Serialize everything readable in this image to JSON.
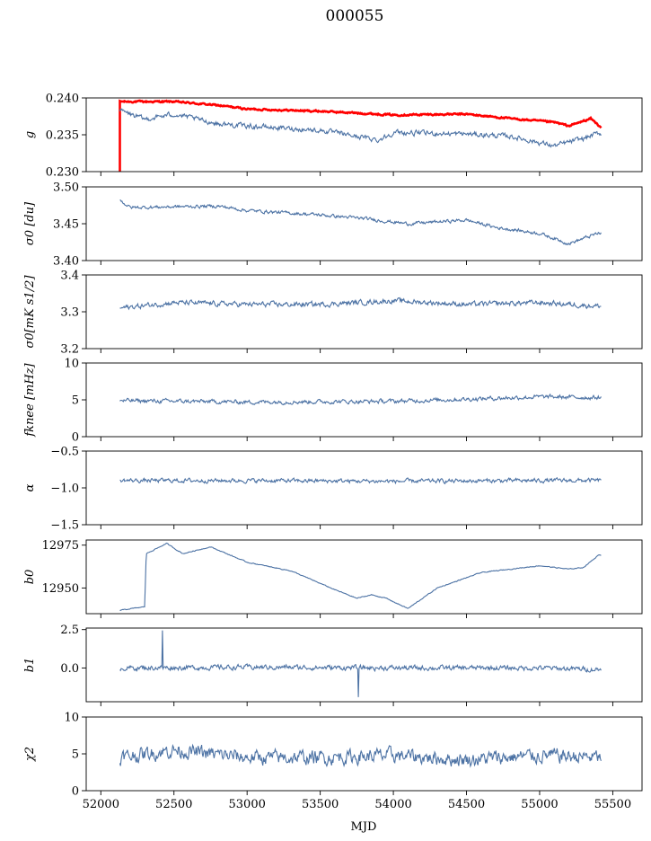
{
  "chart_data": {
    "type": "line",
    "title": "000055",
    "xlabel": "MJD",
    "x_range": [
      52130,
      55420
    ],
    "xlim": [
      51900,
      55700
    ],
    "xticks": [
      52000,
      52500,
      53000,
      53500,
      54000,
      54500,
      55000,
      55500
    ],
    "xtick_labels": [
      "52000",
      "52500",
      "53000",
      "53500",
      "54000",
      "54500",
      "55000",
      "55500"
    ],
    "series_color": "#4c72a4",
    "panels": [
      {
        "ylabel": "g",
        "ylim": [
          0.23,
          0.24
        ],
        "yticks": [
          0.23,
          0.235,
          0.24
        ],
        "ytick_labels": [
          "0.230",
          "0.235",
          "0.240"
        ],
        "series": [
          {
            "color": "#ff0000",
            "anchors": [
              [
                52130,
                0.2395
              ],
              [
                52500,
                0.2395
              ],
              [
                52800,
                0.239
              ],
              [
                53000,
                0.2385
              ],
              [
                53500,
                0.2382
              ],
              [
                54000,
                0.2377
              ],
              [
                54500,
                0.2378
              ],
              [
                54800,
                0.2372
              ],
              [
                55100,
                0.2367
              ],
              [
                55200,
                0.2362
              ],
              [
                55350,
                0.2372
              ],
              [
                55420,
                0.236
              ]
            ]
          },
          {
            "color": "#4c72a4",
            "anchors": [
              [
                52130,
                0.2383
              ],
              [
                52300,
                0.2371
              ],
              [
                52500,
                0.2378
              ],
              [
                52800,
                0.2365
              ],
              [
                53000,
                0.2362
              ],
              [
                53500,
                0.2356
              ],
              [
                53900,
                0.2343
              ],
              [
                54000,
                0.2353
              ],
              [
                54500,
                0.2351
              ],
              [
                54800,
                0.2348
              ],
              [
                55100,
                0.2335
              ],
              [
                55300,
                0.2345
              ],
              [
                55400,
                0.2352
              ]
            ]
          }
        ]
      },
      {
        "ylabel": "σ0 [du]",
        "ylim": [
          3.4,
          3.5
        ],
        "yticks": [
          3.4,
          3.45,
          3.5
        ],
        "ytick_labels": [
          "3.40",
          "3.45",
          "3.50"
        ],
        "series": [
          {
            "color": "#4c72a4",
            "anchors": [
              [
                52130,
                3.482
              ],
              [
                52200,
                3.472
              ],
              [
                52800,
                3.474
              ],
              [
                53000,
                3.468
              ],
              [
                53500,
                3.462
              ],
              [
                53800,
                3.457
              ],
              [
                54100,
                3.45
              ],
              [
                54500,
                3.455
              ],
              [
                54700,
                3.445
              ],
              [
                55000,
                3.437
              ],
              [
                55200,
                3.423
              ],
              [
                55300,
                3.43
              ],
              [
                55400,
                3.437
              ]
            ]
          }
        ]
      },
      {
        "ylabel": "σ0[mK s1/2]",
        "ylim": [
          3.2,
          3.4
        ],
        "yticks": [
          3.2,
          3.3,
          3.4
        ],
        "ytick_labels": [
          "3.2",
          "3.3",
          "3.4"
        ],
        "series": [
          {
            "color": "#4c72a4",
            "anchors": [
              [
                52130,
                3.31
              ],
              [
                52500,
                3.325
              ],
              [
                53000,
                3.32
              ],
              [
                53500,
                3.32
              ],
              [
                54000,
                3.33
              ],
              [
                54500,
                3.32
              ],
              [
                55000,
                3.325
              ],
              [
                55420,
                3.315
              ]
            ]
          }
        ]
      },
      {
        "ylabel": "fknee [mHz]",
        "ylim": [
          0,
          10
        ],
        "yticks": [
          0,
          5,
          10
        ],
        "ytick_labels": [
          "0",
          "5",
          "10"
        ],
        "series": [
          {
            "color": "#4c72a4",
            "anchors": [
              [
                52130,
                4.9
              ],
              [
                53000,
                4.7
              ],
              [
                54000,
                4.8
              ],
              [
                54500,
                5.1
              ],
              [
                55000,
                5.4
              ],
              [
                55420,
                5.3
              ]
            ]
          }
        ]
      },
      {
        "ylabel": "α",
        "ylim": [
          -1.5,
          -0.5
        ],
        "yticks": [
          -1.5,
          -1.0,
          -0.5
        ],
        "ytick_labels": [
          "−1.5",
          "−1.0",
          "−0.5"
        ],
        "series": [
          {
            "color": "#4c72a4",
            "anchors": [
              [
                52130,
                -0.9
              ],
              [
                53000,
                -0.9
              ],
              [
                54000,
                -0.91
              ],
              [
                55000,
                -0.9
              ],
              [
                55420,
                -0.9
              ]
            ]
          }
        ]
      },
      {
        "ylabel": "b0",
        "ylim": [
          12935,
          12978
        ],
        "yticks": [
          12950,
          12975
        ],
        "ytick_labels": [
          "12950",
          "12975"
        ],
        "series": [
          {
            "color": "#4c72a4",
            "anchors": [
              [
                52130,
                12937
              ],
              [
                52300,
                12939
              ],
              [
                52310,
                12970
              ],
              [
                52450,
                12976
              ],
              [
                52560,
                12970
              ],
              [
                52750,
                12974
              ],
              [
                53000,
                12965
              ],
              [
                53300,
                12960
              ],
              [
                53600,
                12949
              ],
              [
                53750,
                12944
              ],
              [
                53850,
                12946
              ],
              [
                53950,
                12944
              ],
              [
                54100,
                12938
              ],
              [
                54300,
                12950
              ],
              [
                54600,
                12959
              ],
              [
                55000,
                12963
              ],
              [
                55200,
                12961
              ],
              [
                55300,
                12962
              ],
              [
                55400,
                12969
              ]
            ]
          }
        ]
      },
      {
        "ylabel": "b1",
        "ylim": [
          -2.2,
          2.6
        ],
        "yticks": [
          0.0,
          2.5
        ],
        "ytick_labels": [
          "0.0",
          "2.5"
        ],
        "series": [
          {
            "color": "#4c72a4",
            "anchors": [
              [
                52130,
                0.0
              ],
              [
                53000,
                0.05
              ],
              [
                54000,
                0.0
              ],
              [
                55000,
                0.0
              ],
              [
                55420,
                -0.1
              ]
            ]
          }
        ]
      },
      {
        "ylabel": "χ2",
        "ylim": [
          0,
          10
        ],
        "yticks": [
          0,
          5,
          10
        ],
        "ytick_labels": [
          "0",
          "5",
          "10"
        ],
        "series": [
          {
            "color": "#4c72a4",
            "anchors": [
              [
                52130,
                4.5
              ],
              [
                52500,
                5.5
              ],
              [
                53000,
                4.5
              ],
              [
                53500,
                4.5
              ],
              [
                54000,
                4.8
              ],
              [
                54500,
                4.2
              ],
              [
                55000,
                4.8
              ],
              [
                55420,
                4.5
              ]
            ]
          }
        ]
      }
    ]
  }
}
